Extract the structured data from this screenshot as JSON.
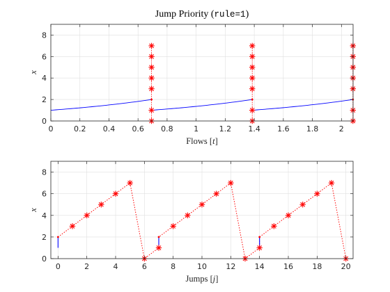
{
  "chart_data": [
    {
      "type": "line",
      "title": "Jump Priority (",
      "title_code": "rule=1",
      "title_close": ")",
      "xlabel": "Flows [",
      "xlabel_var": "t",
      "xlabel_close": "]",
      "ylabel": "x",
      "xlim": [
        0,
        2.08
      ],
      "ylim": [
        0,
        9
      ],
      "xticks": [
        0,
        0.2,
        0.4,
        0.6,
        0.8,
        1,
        1.2,
        1.4,
        1.6,
        1.8,
        2
      ],
      "xtick_labels": [
        "0",
        "0.2",
        "0.4",
        "0.6",
        "0.8",
        "1",
        "1.2",
        "1.4",
        "1.6",
        "1.8",
        "2"
      ],
      "yticks": [
        0,
        2,
        4,
        6,
        8
      ],
      "ytick_labels": [
        "0",
        "2",
        "4",
        "6",
        "8"
      ],
      "grid": true,
      "flow_color": "#0000ff",
      "jump_color": "#ff0000",
      "flow_segments": [
        {
          "t_start": 0,
          "t_end": 0.693,
          "x_start": 1,
          "x_end": 2
        },
        {
          "t_start": 0.693,
          "t_end": 1.386,
          "x_start": 1,
          "x_end": 2
        },
        {
          "t_start": 1.386,
          "t_end": 2.079,
          "x_start": 1,
          "x_end": 2
        }
      ],
      "jump_points": [
        {
          "t": 0.693,
          "x": [
            0,
            1,
            3,
            4,
            5,
            6,
            7
          ]
        },
        {
          "t": 1.386,
          "x": [
            0,
            1,
            3,
            4,
            5,
            6,
            7
          ]
        },
        {
          "t": 2.079,
          "x": [
            0,
            1,
            3,
            4,
            5,
            6,
            7
          ]
        }
      ]
    },
    {
      "type": "scatter",
      "xlabel": "Jumps [",
      "xlabel_var": "j",
      "xlabel_close": "]",
      "ylabel": "x",
      "xlim": [
        -0.5,
        20.5
      ],
      "ylim": [
        0,
        9
      ],
      "xticks": [
        0,
        2,
        4,
        6,
        8,
        10,
        12,
        14,
        16,
        18,
        20
      ],
      "xtick_labels": [
        "0",
        "2",
        "4",
        "6",
        "8",
        "10",
        "12",
        "14",
        "16",
        "18",
        "20"
      ],
      "yticks": [
        0,
        2,
        4,
        6,
        8
      ],
      "ytick_labels": [
        "0",
        "2",
        "4",
        "6",
        "8"
      ],
      "grid": true,
      "flow_color": "#0000ff",
      "jump_color": "#ff0000",
      "flow_segments": [
        {
          "j": 0,
          "x_start": 1,
          "x_end": 2
        },
        {
          "j": 7,
          "x_start": 1,
          "x_end": 2
        },
        {
          "j": 14,
          "x_start": 1,
          "x_end": 2
        }
      ],
      "jump_points": [
        {
          "j": 1,
          "x": 3
        },
        {
          "j": 2,
          "x": 4
        },
        {
          "j": 3,
          "x": 5
        },
        {
          "j": 4,
          "x": 6
        },
        {
          "j": 5,
          "x": 7
        },
        {
          "j": 6,
          "x": 0
        },
        {
          "j": 7,
          "x": 1
        },
        {
          "j": 8,
          "x": 3
        },
        {
          "j": 9,
          "x": 4
        },
        {
          "j": 10,
          "x": 5
        },
        {
          "j": 11,
          "x": 6
        },
        {
          "j": 12,
          "x": 7
        },
        {
          "j": 13,
          "x": 0
        },
        {
          "j": 14,
          "x": 1
        },
        {
          "j": 15,
          "x": 3
        },
        {
          "j": 16,
          "x": 4
        },
        {
          "j": 17,
          "x": 5
        },
        {
          "j": 18,
          "x": 6
        },
        {
          "j": 19,
          "x": 7
        },
        {
          "j": 20,
          "x": 0
        }
      ],
      "path_order": [
        {
          "j": 0,
          "x": 2
        },
        {
          "j": 1,
          "x": 3
        },
        {
          "j": 2,
          "x": 4
        },
        {
          "j": 3,
          "x": 5
        },
        {
          "j": 4,
          "x": 6
        },
        {
          "j": 5,
          "x": 7
        },
        {
          "j": 6,
          "x": 0
        },
        {
          "j": 7,
          "x": 1
        },
        {
          "j": 7,
          "x": 2
        },
        {
          "j": 8,
          "x": 3
        },
        {
          "j": 9,
          "x": 4
        },
        {
          "j": 10,
          "x": 5
        },
        {
          "j": 11,
          "x": 6
        },
        {
          "j": 12,
          "x": 7
        },
        {
          "j": 13,
          "x": 0
        },
        {
          "j": 14,
          "x": 1
        },
        {
          "j": 14,
          "x": 2
        },
        {
          "j": 15,
          "x": 3
        },
        {
          "j": 16,
          "x": 4
        },
        {
          "j": 17,
          "x": 5
        },
        {
          "j": 18,
          "x": 6
        },
        {
          "j": 19,
          "x": 7
        },
        {
          "j": 20,
          "x": 0
        }
      ]
    }
  ]
}
